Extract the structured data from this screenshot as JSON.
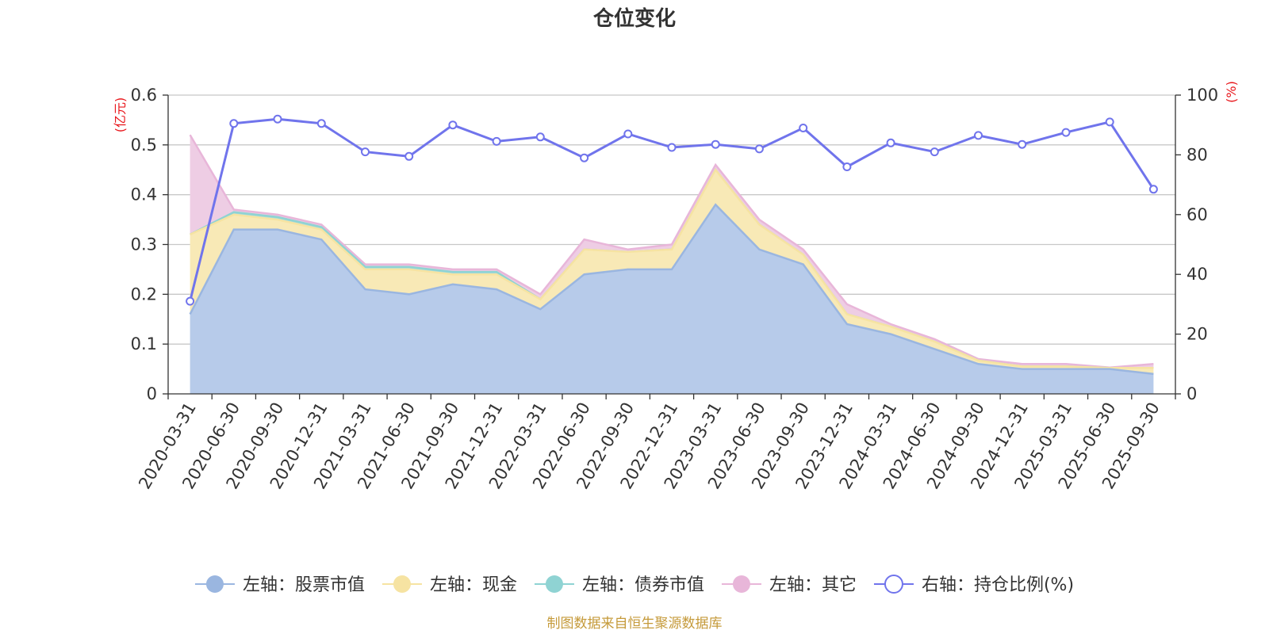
{
  "chart_data": {
    "type": "area",
    "title": "仓位变化",
    "source_note": "制图数据来自恒生聚源数据库",
    "left_axis": {
      "unit": "(亿元)",
      "min": 0,
      "max": 0.6,
      "ticks": [
        "0",
        "0.1",
        "0.2",
        "0.3",
        "0.4",
        "0.5",
        "0.6"
      ]
    },
    "right_axis": {
      "unit": "(%)",
      "min": 0,
      "max": 100,
      "ticks": [
        "0",
        "20",
        "40",
        "60",
        "80",
        "100"
      ]
    },
    "categories": [
      "2020-03-31",
      "2020-06-30",
      "2020-09-30",
      "2020-12-31",
      "2021-03-31",
      "2021-06-30",
      "2021-09-30",
      "2021-12-31",
      "2022-03-31",
      "2022-06-30",
      "2022-09-30",
      "2022-12-31",
      "2023-03-31",
      "2023-06-30",
      "2023-09-30",
      "2023-12-31",
      "2024-03-31",
      "2024-06-30",
      "2024-09-30",
      "2024-12-31",
      "2025-03-31",
      "2025-06-30",
      "2025-09-30"
    ],
    "series": [
      {
        "name": "左轴：股票市值",
        "axis": "left",
        "stack": true,
        "color": "#9ab6e0",
        "fill": "#b7cbea",
        "values": [
          0.16,
          0.33,
          0.33,
          0.31,
          0.21,
          0.2,
          0.22,
          0.21,
          0.17,
          0.24,
          0.25,
          0.25,
          0.38,
          0.29,
          0.26,
          0.14,
          0.12,
          0.09,
          0.06,
          0.05,
          0.05,
          0.05,
          0.04
        ]
      },
      {
        "name": "左轴：现金",
        "axis": "left",
        "stack": true,
        "color": "#f6e3a2",
        "fill": "#f8e9b6",
        "values": [
          0.16,
          0.03,
          0.02,
          0.02,
          0.04,
          0.05,
          0.02,
          0.03,
          0.02,
          0.05,
          0.035,
          0.04,
          0.07,
          0.05,
          0.02,
          0.02,
          0.015,
          0.015,
          0.007,
          0.005,
          0.005,
          0.002,
          0.012
        ]
      },
      {
        "name": "左轴：债券市值",
        "axis": "left",
        "stack": true,
        "color": "#8fd3d3",
        "fill": "#a7dcdc",
        "values": [
          0,
          0.005,
          0.005,
          0.005,
          0.005,
          0.005,
          0.005,
          0.005,
          0,
          0,
          0,
          0,
          0,
          0,
          0,
          0,
          0,
          0,
          0,
          0,
          0,
          0,
          0
        ]
      },
      {
        "name": "左轴：其它",
        "axis": "left",
        "stack": true,
        "color": "#e8b6d9",
        "fill": "#eecde4",
        "values": [
          0.2,
          0.005,
          0.005,
          0.005,
          0.005,
          0.005,
          0.005,
          0.005,
          0.01,
          0.02,
          0.005,
          0.01,
          0.01,
          0.01,
          0.01,
          0.02,
          0.005,
          0.005,
          0.003,
          0.005,
          0.005,
          0.001,
          0.008
        ]
      },
      {
        "name": "右轴：持仓比例(%)",
        "axis": "right",
        "stack": false,
        "color": "#7074ec",
        "values": [
          31,
          90.5,
          92,
          90.5,
          81,
          79.5,
          90,
          84.5,
          86,
          79,
          87,
          82.5,
          83.5,
          82,
          89,
          76,
          84,
          81,
          86.5,
          83.5,
          87.5,
          91,
          68.5
        ]
      }
    ]
  }
}
